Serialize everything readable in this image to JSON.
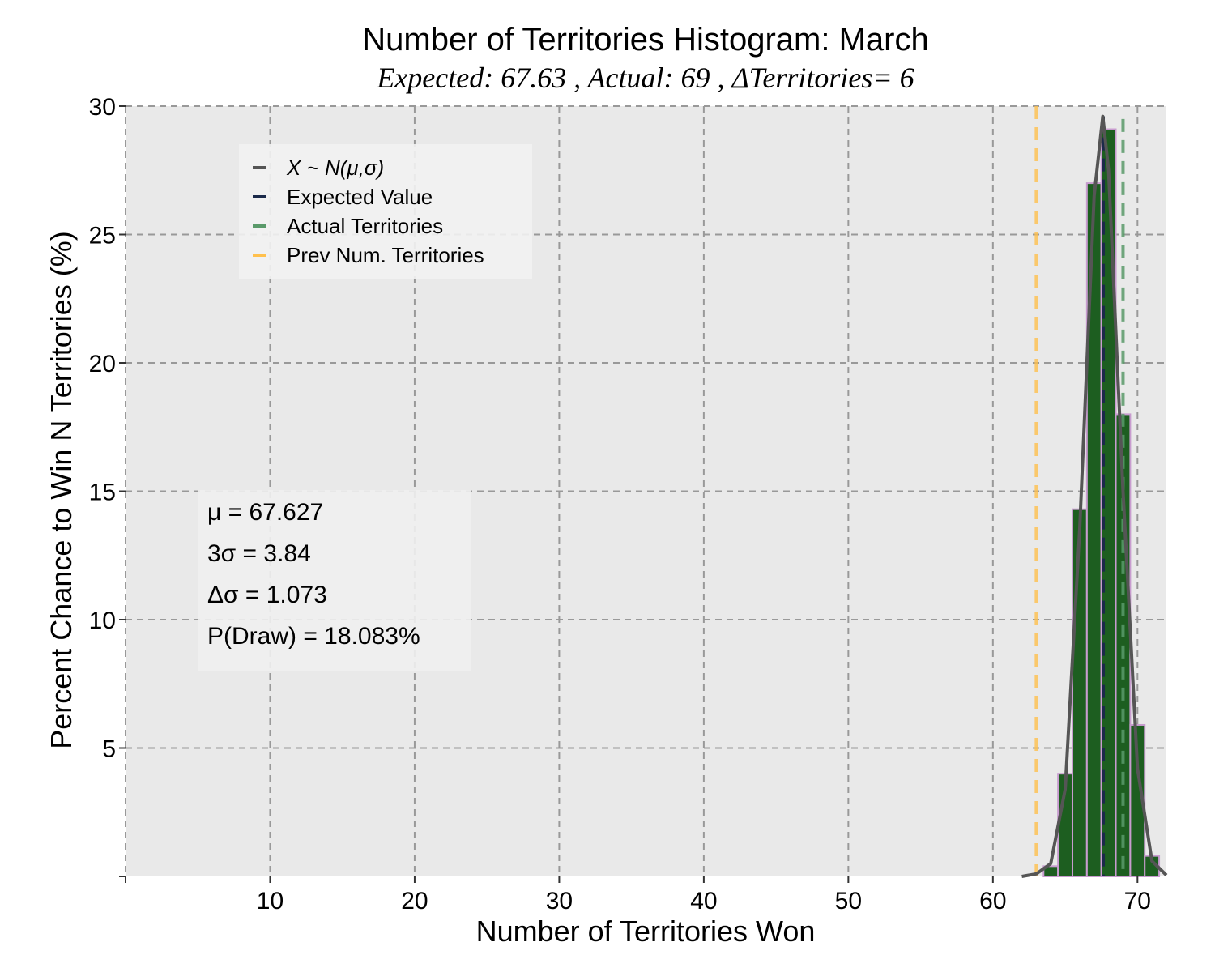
{
  "colors": {
    "plot_bg": "#e9e9e9",
    "grid": "#999999",
    "bar_fill": "#1d5e20",
    "bar_edge": "#c89ccf",
    "normal_curve": "#555555",
    "expected_line": "#1b2a4a",
    "actual_line": "#5a9a6a",
    "prev_line": "#ffc04d"
  },
  "chart_data": {
    "type": "bar",
    "title": "Number of Territories Histogram: March",
    "subtitle": "Expected: 67.63 , Actual: 69 , ΔTerritories= 6",
    "xlabel": "Number of Territories Won",
    "ylabel": "Percent Chance to Win N Territories (%)",
    "xlim": [
      0,
      72
    ],
    "ylim": [
      0,
      30
    ],
    "xticks": [
      10,
      20,
      30,
      40,
      50,
      60,
      70
    ],
    "yticks": [
      5,
      10,
      15,
      20,
      25,
      30
    ],
    "grid": true,
    "legend_position": "upper-left",
    "histogram": {
      "x": [
        64,
        65,
        66,
        67,
        68,
        69,
        70,
        71
      ],
      "values": [
        0.4,
        4.0,
        14.3,
        27.0,
        29.1,
        18.0,
        5.9,
        0.8
      ]
    },
    "normal_curve": {
      "x": [
        62,
        63,
        64,
        65,
        66,
        67,
        67.6,
        68,
        69,
        70,
        71,
        72
      ],
      "values": [
        0.0,
        0.1,
        0.5,
        3.4,
        13.5,
        26.5,
        29.6,
        27.5,
        15.0,
        4.2,
        0.6,
        0.05
      ]
    },
    "expected_value": 67.63,
    "actual_territories": 69,
    "prev_num_territories": 63,
    "legend": [
      {
        "label": "X ~ N(μ,σ)",
        "color": "#555555",
        "italic": true
      },
      {
        "label": "Expected Value",
        "color": "#1b2a4a",
        "italic": false
      },
      {
        "label": "Actual Territories",
        "color": "#5a9a6a",
        "italic": false
      },
      {
        "label": "Prev Num. Territories",
        "color": "#ffc04d",
        "italic": false
      }
    ],
    "stats": [
      "μ = 67.627",
      "3σ = 3.84",
      "Δσ = 1.073",
      "P(Draw) = 18.083%"
    ]
  }
}
